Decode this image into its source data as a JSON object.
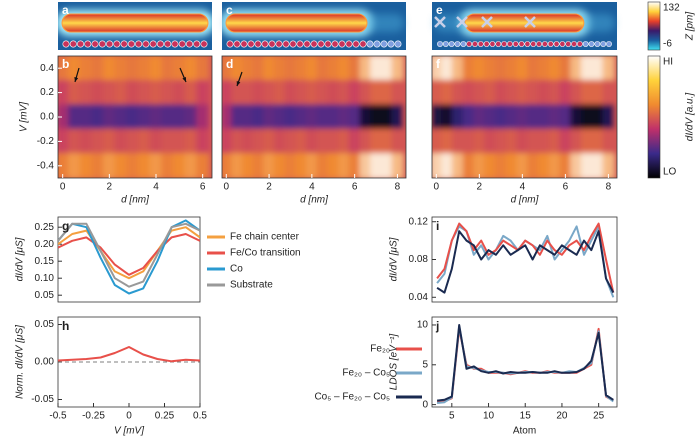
{
  "chart_data": [
    {
      "type": "topography",
      "panel": "a",
      "atoms": [
        {
          "color": "#c8325a",
          "count": 20
        }
      ]
    },
    {
      "type": "topography",
      "panel": "c",
      "atoms": [
        {
          "color": "#c8325a",
          "count": 20
        },
        {
          "color": "#7f9fe0",
          "count": 5
        }
      ]
    },
    {
      "type": "topography",
      "panel": "e",
      "atoms": [
        {
          "color": "#7f9fe0",
          "count": 5
        },
        {
          "color": "#c8325a",
          "count": 20
        },
        {
          "color": "#7f9fe0",
          "count": 5
        }
      ]
    },
    {
      "type": "colorbar",
      "label": "Z [pm]",
      "ticks": [
        132,
        -6
      ],
      "colors": [
        "#ffffff",
        "#ffd23a",
        "#e8402a",
        "#3a1a6a",
        "#1a5fa0",
        "#40e0f0"
      ]
    },
    {
      "type": "heatmap",
      "panel": "b",
      "ylabel": "V [mV]",
      "xlabel": "d [nm]",
      "xlim": [
        -0.2,
        6.4
      ],
      "xticks": [
        0,
        2,
        4,
        6
      ],
      "ylim": [
        -0.5,
        0.5
      ],
      "yticks": [
        0.4,
        0.2,
        {
          "value": 0,
          "label": "0.0"
        },
        -0.2,
        -0.4
      ],
      "x": [
        0,
        0.5,
        1,
        1.5,
        2,
        2.5,
        3,
        3.5,
        4,
        4.5,
        5,
        5.5,
        6
      ],
      "y": [
        0.4,
        0.2,
        0,
        -0.2,
        -0.4
      ],
      "z": [
        [
          0.7,
          0.75,
          0.72,
          0.7,
          0.75,
          0.72,
          0.7,
          0.72,
          0.75,
          0.7,
          0.72,
          0.75,
          0.7
        ],
        [
          0.55,
          0.62,
          0.6,
          0.58,
          0.6,
          0.62,
          0.58,
          0.6,
          0.62,
          0.6,
          0.58,
          0.62,
          0.55
        ],
        [
          0.45,
          0.3,
          0.3,
          0.28,
          0.32,
          0.3,
          0.28,
          0.3,
          0.32,
          0.3,
          0.3,
          0.32,
          0.45
        ],
        [
          0.55,
          0.6,
          0.58,
          0.6,
          0.62,
          0.58,
          0.6,
          0.62,
          0.58,
          0.6,
          0.6,
          0.62,
          0.55
        ],
        [
          0.72,
          0.78,
          0.75,
          0.72,
          0.78,
          0.75,
          0.72,
          0.75,
          0.78,
          0.72,
          0.75,
          0.78,
          0.72
        ]
      ],
      "colormap": [
        "#000000",
        "#3a2a8a",
        "#c0306a",
        "#f08a30",
        "#ffffff"
      ]
    },
    {
      "type": "heatmap",
      "panel": "d",
      "xlabel": "d [nm]",
      "xlim": [
        -0.2,
        8.4
      ],
      "xticks": [
        0,
        2,
        4,
        6,
        8
      ],
      "ylim": [
        -0.5,
        0.5
      ],
      "x": [
        0,
        0.5,
        1,
        1.5,
        2,
        2.5,
        3,
        3.5,
        4,
        4.5,
        5,
        5.5,
        6,
        6.5,
        7,
        7.5,
        8
      ],
      "y": [
        0.4,
        0.2,
        0,
        -0.2,
        -0.4
      ],
      "z": [
        [
          0.7,
          0.75,
          0.72,
          0.7,
          0.75,
          0.72,
          0.7,
          0.72,
          0.75,
          0.7,
          0.72,
          0.75,
          0.7,
          0.85,
          0.95,
          0.95,
          0.85
        ],
        [
          0.55,
          0.6,
          0.6,
          0.58,
          0.6,
          0.62,
          0.58,
          0.6,
          0.62,
          0.6,
          0.58,
          0.6,
          0.55,
          0.6,
          0.65,
          0.65,
          0.6
        ],
        [
          0.45,
          0.3,
          0.3,
          0.28,
          0.32,
          0.3,
          0.28,
          0.3,
          0.32,
          0.3,
          0.3,
          0.32,
          0.3,
          0.1,
          0.05,
          0.05,
          0.15
        ],
        [
          0.55,
          0.6,
          0.58,
          0.6,
          0.62,
          0.58,
          0.6,
          0.62,
          0.58,
          0.6,
          0.6,
          0.62,
          0.55,
          0.6,
          0.65,
          0.65,
          0.6
        ],
        [
          0.72,
          0.78,
          0.75,
          0.72,
          0.78,
          0.75,
          0.72,
          0.75,
          0.78,
          0.72,
          0.75,
          0.78,
          0.72,
          0.88,
          0.95,
          0.95,
          0.85
        ]
      ],
      "colormap": [
        "#000000",
        "#3a2a8a",
        "#c0306a",
        "#f08a30",
        "#ffffff"
      ]
    },
    {
      "type": "heatmap",
      "panel": "f",
      "xlabel": "d [nm]",
      "xlim": [
        -0.2,
        8.4
      ],
      "xticks": [
        0,
        2,
        4,
        6,
        8
      ],
      "ylim": [
        -0.5,
        0.5
      ],
      "x": [
        0,
        0.5,
        1,
        1.5,
        2,
        2.5,
        3,
        3.5,
        4,
        4.5,
        5,
        5.5,
        6,
        6.5,
        7,
        7.5,
        8
      ],
      "y": [
        0.4,
        0.2,
        0,
        -0.2,
        -0.4
      ],
      "z": [
        [
          0.9,
          0.95,
          0.85,
          0.72,
          0.75,
          0.72,
          0.7,
          0.72,
          0.75,
          0.7,
          0.72,
          0.75,
          0.7,
          0.85,
          0.95,
          0.95,
          0.85
        ],
        [
          0.62,
          0.65,
          0.6,
          0.58,
          0.6,
          0.62,
          0.58,
          0.6,
          0.62,
          0.6,
          0.58,
          0.6,
          0.55,
          0.6,
          0.65,
          0.65,
          0.6
        ],
        [
          0.12,
          0.08,
          0.2,
          0.28,
          0.32,
          0.3,
          0.28,
          0.3,
          0.32,
          0.3,
          0.3,
          0.32,
          0.3,
          0.1,
          0.05,
          0.05,
          0.15
        ],
        [
          0.62,
          0.65,
          0.6,
          0.6,
          0.62,
          0.58,
          0.6,
          0.62,
          0.58,
          0.6,
          0.6,
          0.62,
          0.55,
          0.6,
          0.65,
          0.65,
          0.6
        ],
        [
          0.9,
          0.95,
          0.85,
          0.72,
          0.78,
          0.75,
          0.72,
          0.75,
          0.78,
          0.72,
          0.75,
          0.78,
          0.72,
          0.88,
          0.95,
          0.95,
          0.85
        ]
      ],
      "colormap": [
        "#000000",
        "#3a2a8a",
        "#c0306a",
        "#f08a30",
        "#ffffff"
      ]
    },
    {
      "type": "colorbar",
      "label": "dI/dV [a.u.]",
      "ticks": [
        "HI",
        "LO"
      ],
      "colors": [
        "#ffffff",
        "#ffd23a",
        "#f08a30",
        "#c0306a",
        "#3a2a8a",
        "#000000"
      ]
    },
    {
      "type": "line",
      "panel": "g",
      "ylabel": "dI/dV [μS]",
      "legend": "outside-right",
      "x": [
        -0.5,
        -0.4,
        -0.3,
        -0.2,
        -0.1,
        0,
        0.1,
        0.2,
        0.3,
        0.4,
        0.5
      ],
      "xlim": [
        -0.5,
        0.5
      ],
      "ylim": [
        0.03,
        0.28
      ],
      "yticks": [
        0.25,
        {
          "value": 0.2,
          "label": "0.20"
        },
        0.15,
        {
          "value": 0.1,
          "label": "0.10"
        },
        0.05
      ],
      "series": [
        {
          "name": "Fe chain center",
          "color": "#f4a040",
          "values": [
            0.2,
            0.23,
            0.24,
            0.18,
            0.12,
            0.1,
            0.12,
            0.18,
            0.24,
            0.25,
            0.22
          ]
        },
        {
          "name": "Fe/Co transition",
          "color": "#e8504a",
          "values": [
            0.19,
            0.21,
            0.22,
            0.19,
            0.14,
            0.11,
            0.13,
            0.18,
            0.22,
            0.23,
            0.21
          ]
        },
        {
          "name": "Co",
          "color": "#2a9ad0",
          "values": [
            0.21,
            0.26,
            0.25,
            0.16,
            0.08,
            0.055,
            0.07,
            0.15,
            0.25,
            0.27,
            0.24
          ]
        },
        {
          "name": "Substrate",
          "color": "#999999",
          "values": [
            0.21,
            0.26,
            0.26,
            0.18,
            0.1,
            0.075,
            0.09,
            0.17,
            0.25,
            0.26,
            0.24
          ]
        }
      ]
    },
    {
      "type": "line",
      "panel": "h",
      "ylabel": "Norm. dI/dV [μS]",
      "xlabel": "V [mV]",
      "zero_line": true,
      "x": [
        -0.5,
        -0.4,
        -0.3,
        -0.2,
        -0.1,
        0,
        0.1,
        0.2,
        0.3,
        0.4,
        0.5
      ],
      "xlim": [
        -0.5,
        0.5
      ],
      "xticks": [
        -0.5,
        -0.25,
        0,
        0.25,
        0.5
      ],
      "ylim": [
        -0.06,
        0.06
      ],
      "yticks": [
        0.05,
        {
          "value": 0,
          "label": "0.00"
        },
        -0.05
      ],
      "series": [
        {
          "color": "#e8504a",
          "values": [
            0.002,
            0.003,
            0.004,
            0.006,
            0.012,
            0.02,
            0.01,
            0.004,
            0.001,
            0.003,
            0.002
          ]
        }
      ]
    },
    {
      "type": "line",
      "panel": "i",
      "ylabel": "dI/dV [μS]",
      "x": [
        3,
        4,
        5,
        6,
        7,
        8,
        9,
        10,
        11,
        12,
        13,
        14,
        15,
        16,
        17,
        18,
        19,
        20,
        21,
        22,
        23,
        24,
        25,
        26,
        27
      ],
      "xlim": [
        2.3,
        27.5
      ],
      "ylim": [
        0.035,
        0.125
      ],
      "yticks": [
        0.12,
        0.08,
        0.04
      ],
      "series": [
        {
          "color": "#7aa8c8",
          "values": [
            0.055,
            0.065,
            0.1,
            0.115,
            0.11,
            0.085,
            0.095,
            0.08,
            0.09,
            0.105,
            0.1,
            0.09,
            0.1,
            0.095,
            0.09,
            0.105,
            0.08,
            0.09,
            0.1,
            0.115,
            0.085,
            0.1,
            0.115,
            0.06,
            0.04
          ]
        },
        {
          "color": "#e8504a",
          "values": [
            0.06,
            0.07,
            0.1,
            0.118,
            0.11,
            0.09,
            0.1,
            0.085,
            0.09,
            0.1,
            0.095,
            0.09,
            0.1,
            0.095,
            0.085,
            0.1,
            0.09,
            0.085,
            0.095,
            0.1,
            0.09,
            0.105,
            0.118,
            0.08,
            0.045
          ]
        },
        {
          "color": "#1a2a50",
          "values": [
            0.05,
            0.045,
            0.07,
            0.11,
            0.1,
            0.095,
            0.08,
            0.09,
            0.085,
            0.095,
            0.085,
            0.09,
            0.095,
            0.08,
            0.095,
            0.09,
            0.085,
            0.095,
            0.09,
            0.085,
            0.1,
            0.09,
            0.11,
            0.06,
            0.045
          ]
        }
      ]
    },
    {
      "type": "line",
      "panel": "j",
      "ylabel": "LDOS [eV⁻¹]",
      "xlabel": "Atom",
      "legend": "outside-left",
      "x": [
        3,
        4,
        5,
        6,
        7,
        8,
        9,
        10,
        11,
        12,
        13,
        14,
        15,
        16,
        17,
        18,
        19,
        20,
        21,
        22,
        23,
        24,
        25,
        26,
        27
      ],
      "xlim": [
        2.3,
        27.5
      ],
      "xticks": [
        5,
        10,
        15,
        20,
        25
      ],
      "ylim": [
        -0.3,
        11
      ],
      "yticks": [
        10,
        5,
        0
      ],
      "series": [
        {
          "name": "Fe₂₀",
          "color": "#e8504a",
          "values": [
            0.3,
            0.4,
            0.8,
            9.5,
            5,
            4.5,
            4.5,
            4,
            4,
            4,
            3.8,
            4,
            4.2,
            4,
            4,
            4.2,
            4,
            4,
            4,
            4,
            4.5,
            5,
            9.5,
            1,
            0.5
          ]
        },
        {
          "name": "Fe₂₀ – Co₅",
          "color": "#7aa8c8",
          "values": [
            0.2,
            0.3,
            0.9,
            9.8,
            4.8,
            4.6,
            4.3,
            4.1,
            4.1,
            4,
            3.9,
            4,
            4.1,
            4.1,
            4,
            4.1,
            4.1,
            4,
            4.2,
            4.1,
            4.6,
            5.2,
            9.2,
            1.1,
            0.4
          ]
        },
        {
          "name": "Co₅ – Fe₂₀ – Co₅",
          "color": "#1a2a50",
          "values": [
            0.5,
            0.6,
            1,
            10,
            4.5,
            4.8,
            4.2,
            4,
            4.2,
            3.9,
            4.1,
            4,
            4,
            4.1,
            4,
            4,
            4.2,
            4,
            4,
            4.1,
            4.5,
            5.5,
            9,
            1.2,
            0.6
          ]
        }
      ]
    }
  ]
}
